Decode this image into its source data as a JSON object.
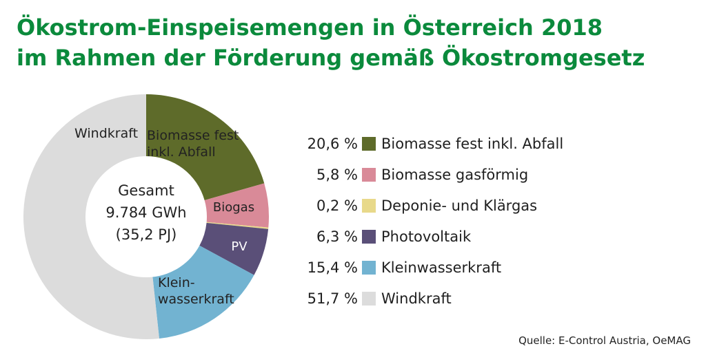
{
  "title_line1": "Ökostrom-Einspeisemengen in Österreich 2018",
  "title_line2": "im Rahmen der Förderung gemäß Ökostromgesetz",
  "source": "Quelle: E-Control Austria, OeMAG",
  "center_label": [
    "Gesamt",
    "9.784 GWh",
    "(35,2 PJ)"
  ],
  "chart_data": {
    "type": "pie",
    "variant": "donut",
    "total": "9.784 GWh",
    "total_pj": "35,2 PJ",
    "slices": [
      {
        "name": "Biomasse fest inkl. Abfall",
        "value": 20.6,
        "pct_label": "20,6 %",
        "color": "#5e6b2a",
        "chart_label": [
          "Biomasse fest",
          "inkl. Abfall"
        ]
      },
      {
        "name": "Biomasse gasförmig",
        "value": 5.8,
        "pct_label": "5,8 %",
        "color": "#d98a98",
        "chart_label": [
          "Biogas"
        ]
      },
      {
        "name": "Deponie- und Klärgas",
        "value": 0.2,
        "pct_label": "0,2 %",
        "color": "#e8d98a",
        "chart_label": []
      },
      {
        "name": "Photovoltaik",
        "value": 6.3,
        "pct_label": "6,3 %",
        "color": "#5a4f78",
        "chart_label": [
          "PV"
        ]
      },
      {
        "name": "Kleinwasserkraft",
        "value": 15.4,
        "pct_label": "15,4 %",
        "color": "#72b3d1",
        "chart_label": [
          "Klein-",
          "wasserkraft"
        ]
      },
      {
        "name": "Windkraft",
        "value": 51.7,
        "pct_label": "51,7 %",
        "color": "#dcdcdc",
        "chart_label": [
          "Windkraft"
        ]
      }
    ]
  }
}
